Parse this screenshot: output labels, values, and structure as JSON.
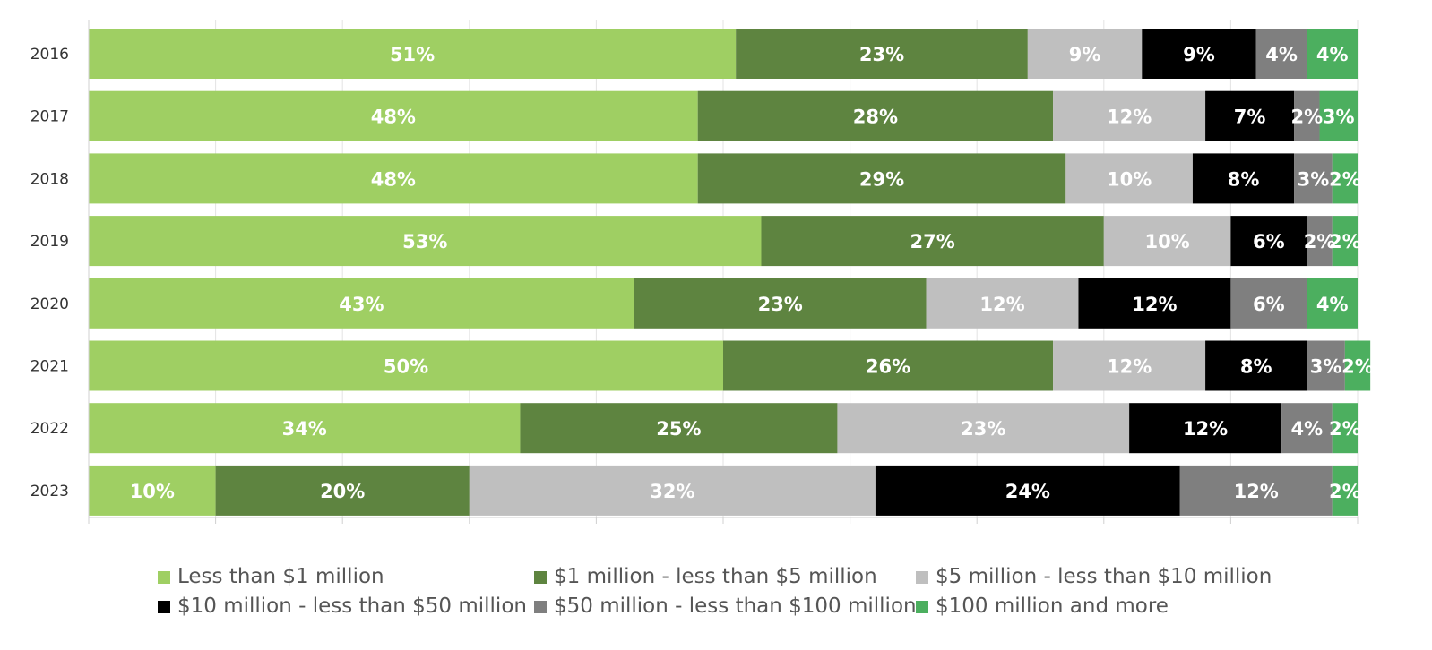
{
  "chart_data": {
    "type": "bar",
    "orientation": "horizontal",
    "stacked": true,
    "categories": [
      "2016",
      "2017",
      "2018",
      "2019",
      "2020",
      "2021",
      "2022",
      "2023"
    ],
    "series": [
      {
        "name": "Less than $1 million",
        "color": "#9fcf63",
        "label_color": "#ffffff",
        "values": [
          51,
          48,
          48,
          53,
          43,
          50,
          34,
          10
        ],
        "labels": [
          "51%",
          "48%",
          "48%",
          "53%",
          "43%",
          "50%",
          "34%",
          "10%"
        ]
      },
      {
        "name": "$1 million - less than $5 million",
        "color": "#5e8440",
        "label_color": "#ffffff",
        "values": [
          23,
          28,
          29,
          27,
          23,
          26,
          25,
          20
        ],
        "labels": [
          "23%",
          "28%",
          "29%",
          "27%",
          "23%",
          "26%",
          "25%",
          "20%"
        ]
      },
      {
        "name": "$5 million - less than $10 million",
        "color": "#bfbfbf",
        "label_color": "#ffffff",
        "values": [
          9,
          12,
          10,
          10,
          12,
          12,
          23,
          32
        ],
        "labels": [
          "9%",
          "12%",
          "10%",
          "10%",
          "12%",
          "12%",
          "23%",
          "32%"
        ]
      },
      {
        "name": "$10 million - less than $50 million",
        "color": "#000000",
        "label_color": "#ffffff",
        "values": [
          9,
          7,
          8,
          6,
          12,
          8,
          12,
          24
        ],
        "labels": [
          "9%",
          "7%",
          "8%",
          "6%",
          "12%",
          "8%",
          "12%",
          "24%"
        ]
      },
      {
        "name": "$50 million - less than $100 million",
        "color": "#7f7f7f",
        "label_color": "#ffffff",
        "values": [
          4,
          2,
          3,
          2,
          6,
          3,
          4,
          12
        ],
        "labels": [
          "4%",
          "2%",
          "3%",
          "2%",
          "6%",
          "3%",
          "4%",
          "12%"
        ]
      },
      {
        "name": "$100 million and more",
        "color": "#4caf5f",
        "label_color": "#ffffff",
        "values": [
          4,
          3,
          2,
          2,
          4,
          2,
          2,
          2
        ],
        "labels": [
          "4%",
          "3%",
          "2%",
          "2%",
          "4%",
          "2%",
          "2%",
          "2%"
        ]
      }
    ],
    "xlim": [
      0,
      100
    ],
    "grid": true,
    "legend_position": "bottom",
    "title": "",
    "xlabel": "",
    "ylabel": ""
  }
}
